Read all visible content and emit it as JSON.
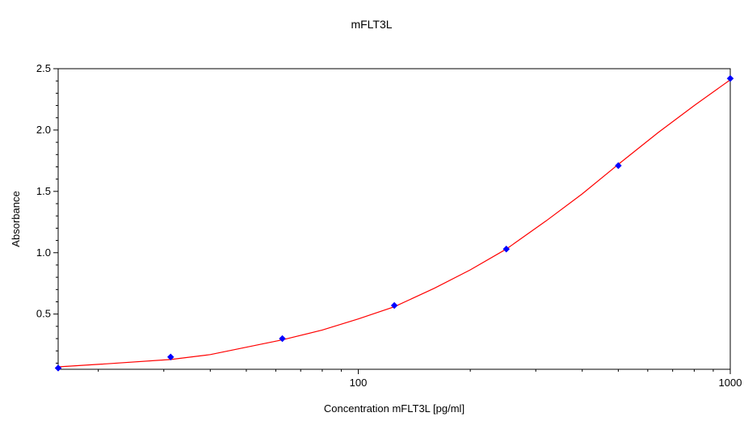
{
  "chart_data": {
    "type": "scatter",
    "title": "mFLT3L",
    "xlabel": "Concentration mFLT3L [pg/ml]",
    "ylabel": "Absorbance",
    "x_scale": "log",
    "xlim": [
      15.6,
      1000
    ],
    "ylim": [
      0.05,
      2.5
    ],
    "x_ticks": [
      100,
      1000
    ],
    "x_tick_labels": [
      "100",
      "1000"
    ],
    "y_ticks": [
      0.5,
      1.0,
      1.5,
      2.0,
      2.5
    ],
    "y_tick_labels": [
      "0.5",
      "1.0",
      "1.5",
      "2.0",
      "2.5"
    ],
    "grid": false,
    "legend": "none",
    "series": [
      {
        "kind": "points",
        "color": "#0000ff",
        "x": [
          15.6,
          31.3,
          62.5,
          125,
          250,
          500,
          1000
        ],
        "y": [
          0.06,
          0.15,
          0.3,
          0.57,
          1.03,
          1.71,
          2.42
        ]
      },
      {
        "kind": "fit-curve",
        "color": "#ff0000",
        "x": [
          15.6,
          20,
          31.3,
          40,
          62.5,
          80,
          100,
          125,
          160,
          200,
          250,
          320,
          400,
          500,
          640,
          800,
          1000
        ],
        "y": [
          0.07,
          0.09,
          0.13,
          0.17,
          0.29,
          0.37,
          0.46,
          0.56,
          0.71,
          0.86,
          1.03,
          1.26,
          1.48,
          1.72,
          1.98,
          2.2,
          2.41
        ]
      }
    ]
  }
}
